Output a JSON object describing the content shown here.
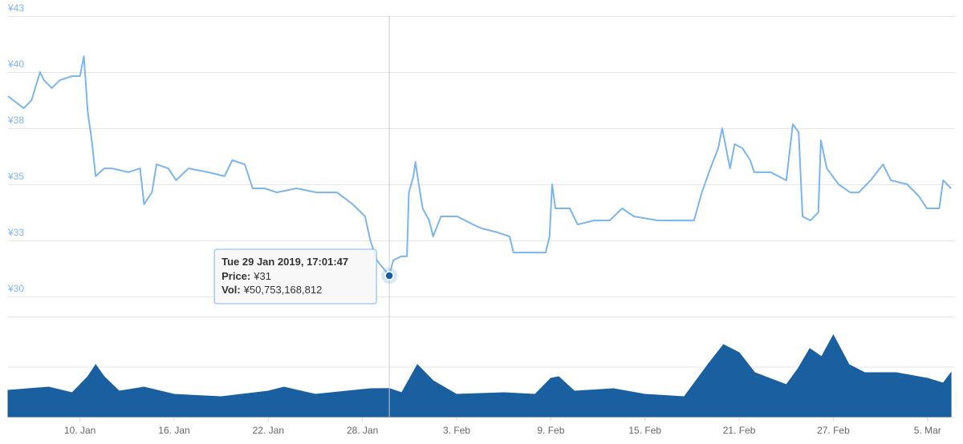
{
  "chart_data": [
    {
      "type": "line",
      "color": "#7cb5ec",
      "grid": true,
      "x": [
        "2019-01-05T10:00",
        "2019-01-06T10:00",
        "2019-01-06T22:00",
        "2019-01-07T11:00",
        "2019-01-07T17:00",
        "2019-01-08T05:00",
        "2019-01-08T17:00",
        "2019-01-09T12:00",
        "2019-01-10T00:00",
        "2019-01-10T06:00",
        "2019-01-10T12:00",
        "2019-01-10T18:00",
        "2019-01-11T00:00",
        "2019-01-11T13:00",
        "2019-01-12T01:00",
        "2019-01-13T02:00",
        "2019-01-13T20:00",
        "2019-01-14T02:00",
        "2019-01-14T14:00",
        "2019-01-14T21:00",
        "2019-01-15T15:00",
        "2019-01-16T03:00",
        "2019-01-16T22:00",
        "2019-01-18T04:00",
        "2019-01-19T05:00",
        "2019-01-19T17:00",
        "2019-01-20T12:00",
        "2019-01-21T00:00",
        "2019-01-21T18:00",
        "2019-01-22T13:00",
        "2019-01-23T19:00",
        "2019-01-25T02:00",
        "2019-01-26T09:00",
        "2019-01-27T09:00",
        "2019-01-28T04:00",
        "2019-01-28T12:00",
        "2019-01-28T22:00",
        "2019-01-29T17:01:47",
        "2019-01-29T23:00",
        "2019-01-30T11:00",
        "2019-01-30T20:00",
        "2019-01-30T23:00",
        "2019-01-31T06:00",
        "2019-01-31T09:00",
        "2019-01-31T14:00",
        "2019-01-31T20:00",
        "2019-02-01T06:00",
        "2019-02-01T12:00",
        "2019-02-02T00:00",
        "2019-02-03T01:00",
        "2019-02-04T01:00",
        "2019-02-04T14:00",
        "2019-02-05T14:00",
        "2019-02-06T09:00",
        "2019-02-06T15:00",
        "2019-02-07T15:00",
        "2019-02-08T16:00",
        "2019-02-08T22:00",
        "2019-02-09T02:00",
        "2019-02-09T07:00",
        "2019-02-10T05:00",
        "2019-02-10T17:00",
        "2019-02-11T18:00",
        "2019-02-12T18:00",
        "2019-02-13T13:00",
        "2019-02-14T07:00",
        "2019-02-15T20:00",
        "2019-02-16T20:00",
        "2019-02-18T03:00",
        "2019-02-18T15:00",
        "2019-02-19T04:00",
        "2019-02-19T16:00",
        "2019-02-19T22:00",
        "2019-02-20T10:00",
        "2019-02-20T17:00",
        "2019-02-21T05:00",
        "2019-02-21T17:00",
        "2019-02-21T23:00",
        "2019-02-23T00:00",
        "2019-02-24T00:00",
        "2019-02-24T10:00",
        "2019-02-24T19:00",
        "2019-02-25T01:00",
        "2019-02-25T13:00",
        "2019-02-26T01:00",
        "2019-02-26T05:00",
        "2019-02-26T14:00",
        "2019-02-27T08:00",
        "2019-02-28T02:00",
        "2019-02-28T15:00",
        "2019-03-01T09:00",
        "2019-03-02T04:00",
        "2019-03-02T16:00",
        "2019-03-03T17:00",
        "2019-03-04T11:00",
        "2019-03-04T23:00",
        "2019-03-05T18:00",
        "2019-03-06T00:00",
        "2019-03-06T12:00"
      ],
      "values": [
        38.93,
        38.39,
        38.75,
        40.0,
        39.64,
        39.29,
        39.64,
        39.82,
        39.82,
        40.71,
        38.21,
        36.96,
        35.36,
        35.71,
        35.71,
        35.54,
        35.71,
        34.11,
        34.64,
        35.89,
        35.71,
        35.18,
        35.71,
        35.54,
        35.36,
        36.07,
        35.89,
        34.82,
        34.82,
        34.64,
        34.82,
        34.64,
        34.64,
        34.11,
        33.57,
        32.5,
        31.61,
        30.93,
        31.61,
        31.79,
        31.79,
        34.64,
        35.36,
        36.0,
        35.0,
        33.93,
        33.39,
        32.68,
        33.57,
        33.57,
        33.21,
        33.04,
        32.86,
        32.68,
        31.96,
        31.96,
        31.96,
        32.68,
        35.0,
        33.93,
        33.93,
        33.21,
        33.39,
        33.39,
        33.93,
        33.57,
        33.39,
        33.39,
        33.39,
        34.64,
        35.71,
        36.61,
        37.5,
        35.71,
        36.79,
        36.61,
        36.07,
        35.54,
        35.54,
        35.18,
        37.68,
        37.32,
        33.57,
        33.39,
        33.75,
        36.96,
        35.71,
        35.0,
        34.64,
        34.64,
        35.18,
        35.89,
        35.18,
        35.0,
        34.46,
        33.93,
        33.93,
        35.18,
        34.82
      ],
      "xlim": [
        "2019-01-05T10:00",
        "2019-03-06T18:00"
      ],
      "ylim": [
        30,
        42.5
      ],
      "yticks": [
        {
          "value": 30,
          "label": "¥30"
        },
        {
          "value": 32.5,
          "label": "¥33"
        },
        {
          "value": 35,
          "label": "¥35"
        },
        {
          "value": 37.5,
          "label": "¥38"
        },
        {
          "value": 40,
          "label": "¥40"
        },
        {
          "value": 42.5,
          "label": "¥43"
        }
      ],
      "tooltip": {
        "index": 37,
        "header": "Tue 29 Jan 2019, 17:01:47",
        "rows": [
          {
            "label": "Price:",
            "value": "¥31"
          },
          {
            "label": "Vol:",
            "value": "¥50,753,168,812"
          }
        ]
      }
    },
    {
      "type": "area",
      "color": "#1a5f9f",
      "grid": true,
      "show_tick_labels": false,
      "x": [
        "2019-01-05T10:00",
        "2019-01-08T00:00",
        "2019-01-09T12:00",
        "2019-01-10T12:00",
        "2019-01-11T00:00",
        "2019-01-11T13:00",
        "2019-01-12T12:00",
        "2019-01-14T02:00",
        "2019-01-16T00:00",
        "2019-01-19T00:00",
        "2019-01-22T00:00",
        "2019-01-23T00:00",
        "2019-01-25T00:00",
        "2019-01-27T00:00",
        "2019-01-28T12:00",
        "2019-01-29T17:01:47",
        "2019-01-30T12:00",
        "2019-01-31T12:00",
        "2019-02-01T12:00",
        "2019-02-03T00:00",
        "2019-02-06T00:00",
        "2019-02-08T00:00",
        "2019-02-09T00:00",
        "2019-02-09T12:00",
        "2019-02-10T12:00",
        "2019-02-13T00:00",
        "2019-02-15T00:00",
        "2019-02-17T12:00",
        "2019-02-19T00:00",
        "2019-02-20T00:00",
        "2019-02-21T00:00",
        "2019-02-22T00:00",
        "2019-02-24T00:00",
        "2019-02-24T18:00",
        "2019-02-25T12:00",
        "2019-02-26T06:00",
        "2019-02-27T00:00",
        "2019-02-28T00:00",
        "2019-03-01T00:00",
        "2019-03-03T00:00",
        "2019-03-05T00:00",
        "2019-03-06T00:00",
        "2019-03-06T12:00"
      ],
      "values": [
        47500000000.0,
        53300000000.0,
        43200000000.0,
        72000000000.0,
        93600000000.0,
        72000000000.0,
        46100000000.0,
        53300000000.0,
        40300000000.0,
        36000000000.0,
        46100000000.0,
        53300000000.0,
        40300000000.0,
        46100000000.0,
        50400000000.0,
        50753168812,
        43200000000.0,
        93600000000.0,
        64800000000.0,
        40300000000.0,
        43200000000.0,
        40300000000.0,
        69100000000.0,
        72000000000.0,
        46100000000.0,
        50400000000.0,
        40300000000.0,
        36000000000.0,
        93600000000.0,
        129600000000.0,
        115200000000.0,
        79200000000.0,
        57600000000.0,
        86400000000.0,
        122400000000.0,
        108000000000.0,
        146900000000.0,
        93600000000.0,
        79200000000.0,
        79200000000.0,
        69100000000.0,
        60500000000.0,
        79200000000.0
      ],
      "xlim": [
        "2019-01-05T10:00",
        "2019-03-06T18:00"
      ],
      "ylim": [
        0,
        180000000000.0
      ],
      "yticks": [
        0,
        90000000000.0,
        180000000000.0
      ],
      "xticks": [
        {
          "value": "2019-01-10",
          "label": "10. Jan"
        },
        {
          "value": "2019-01-16",
          "label": "16. Jan"
        },
        {
          "value": "2019-01-22",
          "label": "22. Jan"
        },
        {
          "value": "2019-01-28",
          "label": "28. Jan"
        },
        {
          "value": "2019-02-03",
          "label": "3. Feb"
        },
        {
          "value": "2019-02-09",
          "label": "9. Feb"
        },
        {
          "value": "2019-02-15",
          "label": "15. Feb"
        },
        {
          "value": "2019-02-21",
          "label": "21. Feb"
        },
        {
          "value": "2019-02-27",
          "label": "27. Feb"
        },
        {
          "value": "2019-03-05",
          "label": "5. Mar"
        }
      ]
    }
  ]
}
